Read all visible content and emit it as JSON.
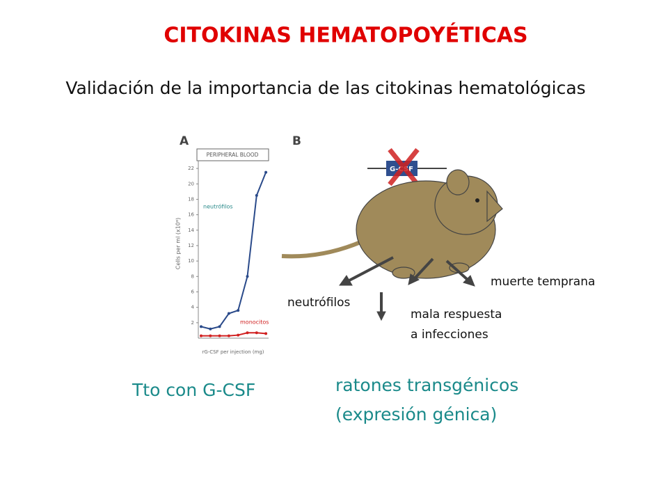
{
  "title": "CITOKINAS HEMATOPOYÉTICAS",
  "subtitle": "Validación de la importancia de las citokinas hematológicas",
  "panel_a": {
    "letter": "A",
    "header": "PERIPHERAL BLOOD",
    "ylabel": "Cells per ml (x10⁶)",
    "xlabel": "rG-CSF per injection (mg)",
    "ylim": [
      0,
      23
    ],
    "yticks": [
      2,
      4,
      6,
      8,
      10,
      12,
      14,
      16,
      18,
      20,
      22
    ],
    "series": [
      {
        "name": "neutrófilos",
        "color": "#2a4a8a",
        "values": [
          1.5,
          1.2,
          1.5,
          3.2,
          3.6,
          8,
          18.5,
          21.5
        ]
      },
      {
        "name": "monocitos",
        "color": "#d02020",
        "values": [
          0.3,
          0.3,
          0.3,
          0.3,
          0.4,
          0.7,
          0.7,
          0.6
        ]
      }
    ]
  },
  "panel_b": {
    "letter": "B",
    "gene": "G-CSF",
    "neutrophils": "neutrófilos",
    "outcome_1": "muerte temprana",
    "outcome_2_line_1": "mala respuesta",
    "outcome_2_line_2": "a infecciones"
  },
  "caption_a": "Tto con G-CSF",
  "caption_b_line_1": "ratones transgénicos",
  "caption_b_line_2": "(expresión génica)"
}
